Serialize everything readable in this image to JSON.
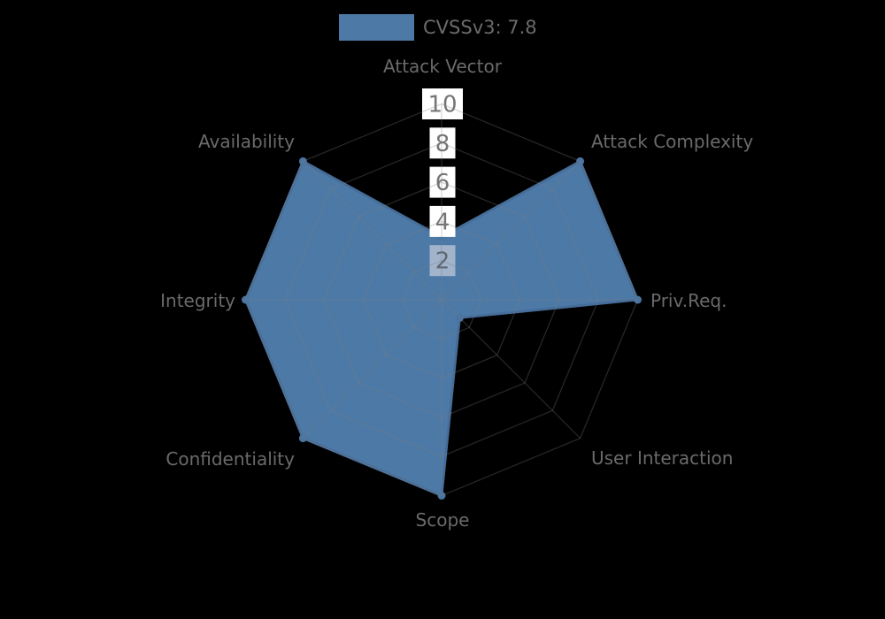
{
  "chart_data": {
    "type": "radar",
    "legend": {
      "label": "CVSSv3: 7.8"
    },
    "axes": [
      "Attack Vector",
      "Attack Complexity",
      "Priv.Req.",
      "User Interaction",
      "Scope",
      "Confidentiality",
      "Integrity",
      "Availability"
    ],
    "series": [
      {
        "name": "CVSSv3: 7.8",
        "values": [
          3.2,
          10,
          10,
          1.3,
          10,
          10,
          10,
          10
        ]
      }
    ],
    "ticks": [
      "2",
      "4",
      "6",
      "8",
      "10"
    ],
    "tick_values": [
      2,
      4,
      6,
      8,
      10
    ],
    "range": [
      0,
      10
    ],
    "grid": "polygon",
    "legend_position": "top"
  },
  "colors": {
    "background": "#000000",
    "fill": "#4d79a6",
    "stroke": "#466d99",
    "marker": "#4a74a1",
    "grid": "rgba(125,125,125,0.3)",
    "axis_label": "#6a6a6a",
    "tick_text": "#757575",
    "tick_box": "#ffffff",
    "tick_box_inside_fill": "#a1b4cc",
    "tick_text_inside_fill": "#5d6874",
    "legend_text": "#6b6b6b"
  }
}
